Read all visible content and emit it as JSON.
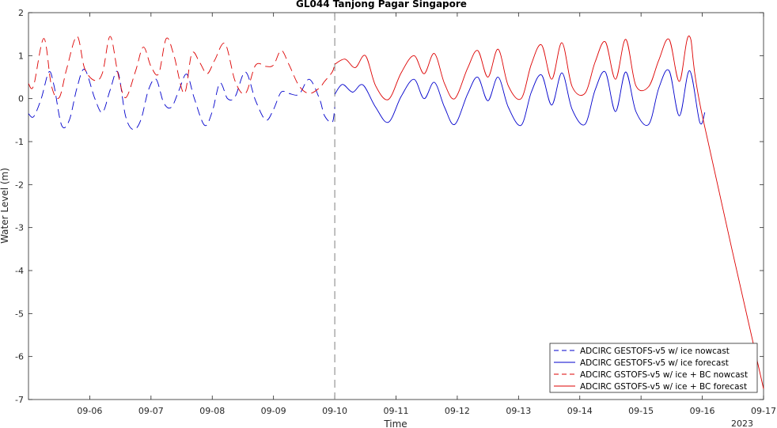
{
  "chart_data": {
    "type": "line",
    "title": "GL044 Tanjong Pagar Singapore",
    "xlabel": "Time",
    "ylabel": "Water Level (m)",
    "year_label": "2023",
    "x_domain": [
      "2023-09-05T00:00",
      "2023-09-17T00:00"
    ],
    "ylim": [
      -7,
      2
    ],
    "y_ticks": [
      2,
      1,
      0,
      -1,
      -2,
      -3,
      -4,
      -5,
      -6,
      -7
    ],
    "x_ticks": [
      {
        "t": "2023-09-06T00:00",
        "label": "09-06"
      },
      {
        "t": "2023-09-07T00:00",
        "label": "09-07"
      },
      {
        "t": "2023-09-08T00:00",
        "label": "09-08"
      },
      {
        "t": "2023-09-09T00:00",
        "label": "09-09"
      },
      {
        "t": "2023-09-10T00:00",
        "label": "09-10"
      },
      {
        "t": "2023-09-11T00:00",
        "label": "09-11"
      },
      {
        "t": "2023-09-12T00:00",
        "label": "09-12"
      },
      {
        "t": "2023-09-13T00:00",
        "label": "09-13"
      },
      {
        "t": "2023-09-14T00:00",
        "label": "09-14"
      },
      {
        "t": "2023-09-15T00:00",
        "label": "09-15"
      },
      {
        "t": "2023-09-16T00:00",
        "label": "09-16"
      },
      {
        "t": "2023-09-17T00:00",
        "label": "09-17"
      }
    ],
    "vline": "2023-09-10T00:00",
    "legend_position": "bottom-right",
    "series": [
      {
        "name": "ADCIRC GESTOFS-v5 w/ ice nowcast",
        "color": "#0000cc",
        "style": "dashed",
        "x": [
          "2023-09-05T00:00",
          "2023-09-05T02:00",
          "2023-09-05T05:00",
          "2023-09-05T08:00",
          "2023-09-05T10:00",
          "2023-09-05T13:00",
          "2023-09-05T16:00",
          "2023-09-05T19:00",
          "2023-09-05T22:00",
          "2023-09-06T02:00",
          "2023-09-06T05:00",
          "2023-09-06T08:00",
          "2023-09-06T11:00",
          "2023-09-06T14:00",
          "2023-09-06T17:00",
          "2023-09-06T20:00",
          "2023-09-06T23:00",
          "2023-09-07T02:00",
          "2023-09-07T05:00",
          "2023-09-07T08:00",
          "2023-09-07T11:00",
          "2023-09-07T14:00",
          "2023-09-07T17:00",
          "2023-09-07T21:00",
          "2023-09-08T00:00",
          "2023-09-08T03:00",
          "2023-09-08T06:00",
          "2023-09-08T09:00",
          "2023-09-08T13:00",
          "2023-09-08T17:00",
          "2023-09-08T21:00",
          "2023-09-09T00:00",
          "2023-09-09T03:00",
          "2023-09-09T06:00",
          "2023-09-09T10:00",
          "2023-09-09T14:00",
          "2023-09-09T18:00",
          "2023-09-09T20:00",
          "2023-09-09T23:00",
          "2023-09-10T00:00"
        ],
        "y": [
          -0.35,
          -0.42,
          0.0,
          0.62,
          0.3,
          -0.62,
          -0.5,
          0.25,
          0.68,
          0.0,
          -0.32,
          0.2,
          0.62,
          -0.4,
          -0.72,
          -0.5,
          0.2,
          0.45,
          -0.1,
          -0.2,
          0.2,
          0.57,
          0.0,
          -0.62,
          -0.3,
          0.36,
          0.0,
          0.05,
          0.62,
          -0.05,
          -0.5,
          -0.25,
          0.15,
          0.12,
          0.1,
          0.45,
          0.0,
          -0.4,
          -0.55,
          -0.2
        ]
      },
      {
        "name": "ADCIRC GESTOFS-v5 w/ ice forecast",
        "color": "#0000cc",
        "style": "solid",
        "x": [
          "2023-09-10T00:00",
          "2023-09-10T03:00",
          "2023-09-10T07:00",
          "2023-09-10T11:00",
          "2023-09-10T16:00",
          "2023-09-10T21:00",
          "2023-09-11T02:00",
          "2023-09-11T07:00",
          "2023-09-11T11:00",
          "2023-09-11T15:00",
          "2023-09-11T19:00",
          "2023-09-11T23:00",
          "2023-09-12T04:00",
          "2023-09-12T08:00",
          "2023-09-12T12:00",
          "2023-09-12T16:00",
          "2023-09-12T20:00",
          "2023-09-13T01:00",
          "2023-09-13T05:00",
          "2023-09-13T09:00",
          "2023-09-13T13:00",
          "2023-09-13T17:00",
          "2023-09-13T21:00",
          "2023-09-14T02:00",
          "2023-09-14T06:00",
          "2023-09-14T10:00",
          "2023-09-14T14:00",
          "2023-09-14T18:00",
          "2023-09-14T22:00",
          "2023-09-15T03:00",
          "2023-09-15T07:00",
          "2023-09-15T11:00",
          "2023-09-15T15:00",
          "2023-09-15T19:00",
          "2023-09-15T23:00",
          "2023-09-16T01:00"
        ],
        "y": [
          0.1,
          0.33,
          0.15,
          0.32,
          -0.2,
          -0.55,
          0.05,
          0.45,
          0.0,
          0.38,
          -0.2,
          -0.6,
          0.1,
          0.5,
          -0.05,
          0.5,
          -0.2,
          -0.62,
          0.15,
          0.55,
          -0.15,
          0.6,
          -0.25,
          -0.6,
          0.2,
          0.62,
          -0.3,
          0.62,
          -0.3,
          -0.6,
          0.25,
          0.65,
          -0.4,
          0.65,
          -0.55,
          -0.32
        ]
      },
      {
        "name": "ADCIRC GSTOFS-v5 w/ ice + BC nowcast",
        "color": "#dd0000",
        "style": "dashed",
        "x": [
          "2023-09-05T00:00",
          "2023-09-05T02:00",
          "2023-09-05T06:00",
          "2023-09-05T09:00",
          "2023-09-05T12:00",
          "2023-09-05T15:00",
          "2023-09-05T19:00",
          "2023-09-05T22:00",
          "2023-09-06T02:00",
          "2023-09-06T05:00",
          "2023-09-06T08:00",
          "2023-09-06T11:00",
          "2023-09-06T14:00",
          "2023-09-06T18:00",
          "2023-09-06T21:00",
          "2023-09-07T00:00",
          "2023-09-07T03:00",
          "2023-09-07T06:00",
          "2023-09-07T09:00",
          "2023-09-07T13:00",
          "2023-09-07T16:00",
          "2023-09-07T19:00",
          "2023-09-07T22:00",
          "2023-09-08T01:00",
          "2023-09-08T05:00",
          "2023-09-08T09:00",
          "2023-09-08T13:00",
          "2023-09-08T17:00",
          "2023-09-08T21:00",
          "2023-09-09T00:00",
          "2023-09-09T03:00",
          "2023-09-09T06:00",
          "2023-09-09T10:00",
          "2023-09-09T14:00",
          "2023-09-09T18:00",
          "2023-09-09T20:00",
          "2023-09-09T23:00",
          "2023-09-10T00:00"
        ],
        "y": [
          0.35,
          0.3,
          1.4,
          0.3,
          0.02,
          0.7,
          1.45,
          0.7,
          0.42,
          0.6,
          1.45,
          0.6,
          0.02,
          0.65,
          1.2,
          0.75,
          0.58,
          1.4,
          1.0,
          0.12,
          1.05,
          0.85,
          0.58,
          0.9,
          1.28,
          0.4,
          0.12,
          0.78,
          0.75,
          0.78,
          1.12,
          0.8,
          0.3,
          0.12,
          0.25,
          0.4,
          0.62,
          0.8
        ]
      },
      {
        "name": "ADCIRC GSTOFS-v5 w/ ice + BC forecast",
        "color": "#dd0000",
        "style": "solid",
        "x": [
          "2023-09-10T00:00",
          "2023-09-10T04:00",
          "2023-09-10T08:00",
          "2023-09-10T12:00",
          "2023-09-10T16:00",
          "2023-09-10T21:00",
          "2023-09-11T02:00",
          "2023-09-11T07:00",
          "2023-09-11T11:00",
          "2023-09-11T15:00",
          "2023-09-11T19:00",
          "2023-09-11T23:00",
          "2023-09-12T04:00",
          "2023-09-12T08:00",
          "2023-09-12T12:00",
          "2023-09-12T16:00",
          "2023-09-12T20:00",
          "2023-09-13T01:00",
          "2023-09-13T05:00",
          "2023-09-13T09:00",
          "2023-09-13T13:00",
          "2023-09-13T17:00",
          "2023-09-13T21:00",
          "2023-09-14T02:00",
          "2023-09-14T06:00",
          "2023-09-14T10:00",
          "2023-09-14T14:00",
          "2023-09-14T18:00",
          "2023-09-14T22:00",
          "2023-09-15T03:00",
          "2023-09-15T07:00",
          "2023-09-15T11:00",
          "2023-09-15T15:00",
          "2023-09-15T19:00",
          "2023-09-16T00:00",
          "2023-09-17T00:00"
        ],
        "y": [
          0.8,
          0.92,
          0.72,
          1.0,
          0.3,
          -0.02,
          0.6,
          1.0,
          0.58,
          1.05,
          0.35,
          0.0,
          0.7,
          1.12,
          0.5,
          1.15,
          0.3,
          0.0,
          0.8,
          1.25,
          0.45,
          1.3,
          0.28,
          0.12,
          0.85,
          1.32,
          0.45,
          1.38,
          0.3,
          0.28,
          0.9,
          1.38,
          0.4,
          1.45,
          -0.4,
          -6.75
        ]
      }
    ]
  }
}
